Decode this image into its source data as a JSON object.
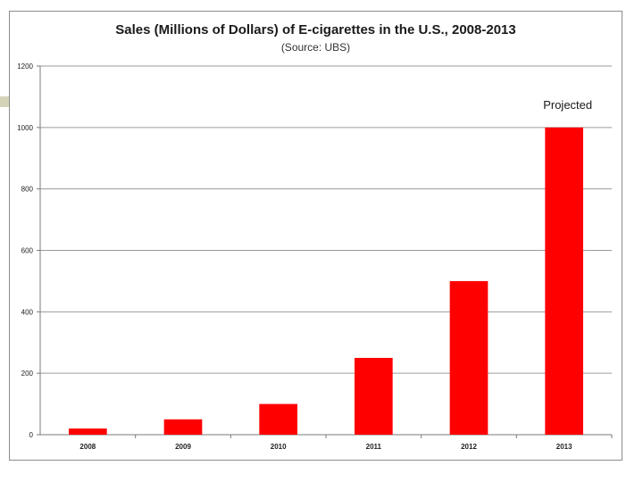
{
  "chart_data": {
    "type": "bar",
    "title": "Sales (Millions of Dollars) of E-cigarettes in the U.S., 2008-2013",
    "subtitle": "(Source: UBS)",
    "categories": [
      "2008",
      "2009",
      "2010",
      "2011",
      "2012",
      "2013"
    ],
    "values": [
      20,
      50,
      100,
      250,
      500,
      1000
    ],
    "yticks": [
      0,
      200,
      400,
      600,
      800,
      1000,
      1200
    ],
    "ylim": [
      0,
      1200
    ],
    "xlabel": "",
    "ylabel": "",
    "grid": true,
    "bar_color": "#ff0000",
    "annotation": {
      "text": "Projected",
      "category": "2013"
    }
  }
}
